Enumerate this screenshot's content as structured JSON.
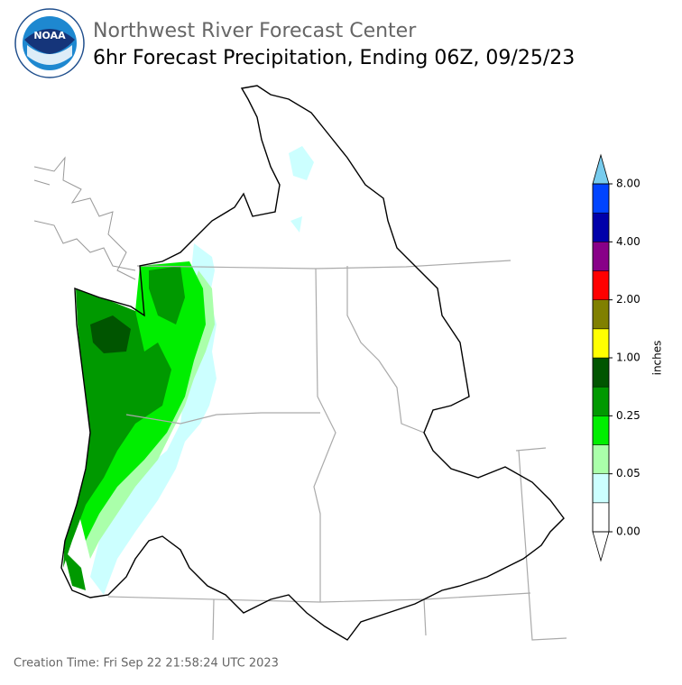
{
  "logo": {
    "text": "NOAA"
  },
  "header": {
    "title": "Northwest River Forecast Center",
    "subtitle": "6hr Forecast Precipitation, Ending 06Z, 09/25/23"
  },
  "colorbar": {
    "label": "inches",
    "ticks": [
      {
        "value": 0,
        "label": "0.00"
      },
      {
        "value": 0.05,
        "label": "0.05"
      },
      {
        "value": 0.25,
        "label": "0.25"
      },
      {
        "value": 1,
        "label": "1.00"
      },
      {
        "value": 2,
        "label": "2.00"
      },
      {
        "value": 4,
        "label": "4.00"
      },
      {
        "value": 8,
        "label": "8.00"
      }
    ],
    "colors": [
      "#ffffff",
      "#ccffff",
      "#aaffaa",
      "#00ee00",
      "#009900",
      "#005500",
      "#ffff00",
      "#808000",
      "#ff0000",
      "#880088",
      "#0000aa",
      "#0044ff"
    ],
    "over_color": "#77ccee"
  },
  "footer": {
    "creation_time": "Creation Time: Fri Sep 22 21:58:24 UTC 2023"
  }
}
